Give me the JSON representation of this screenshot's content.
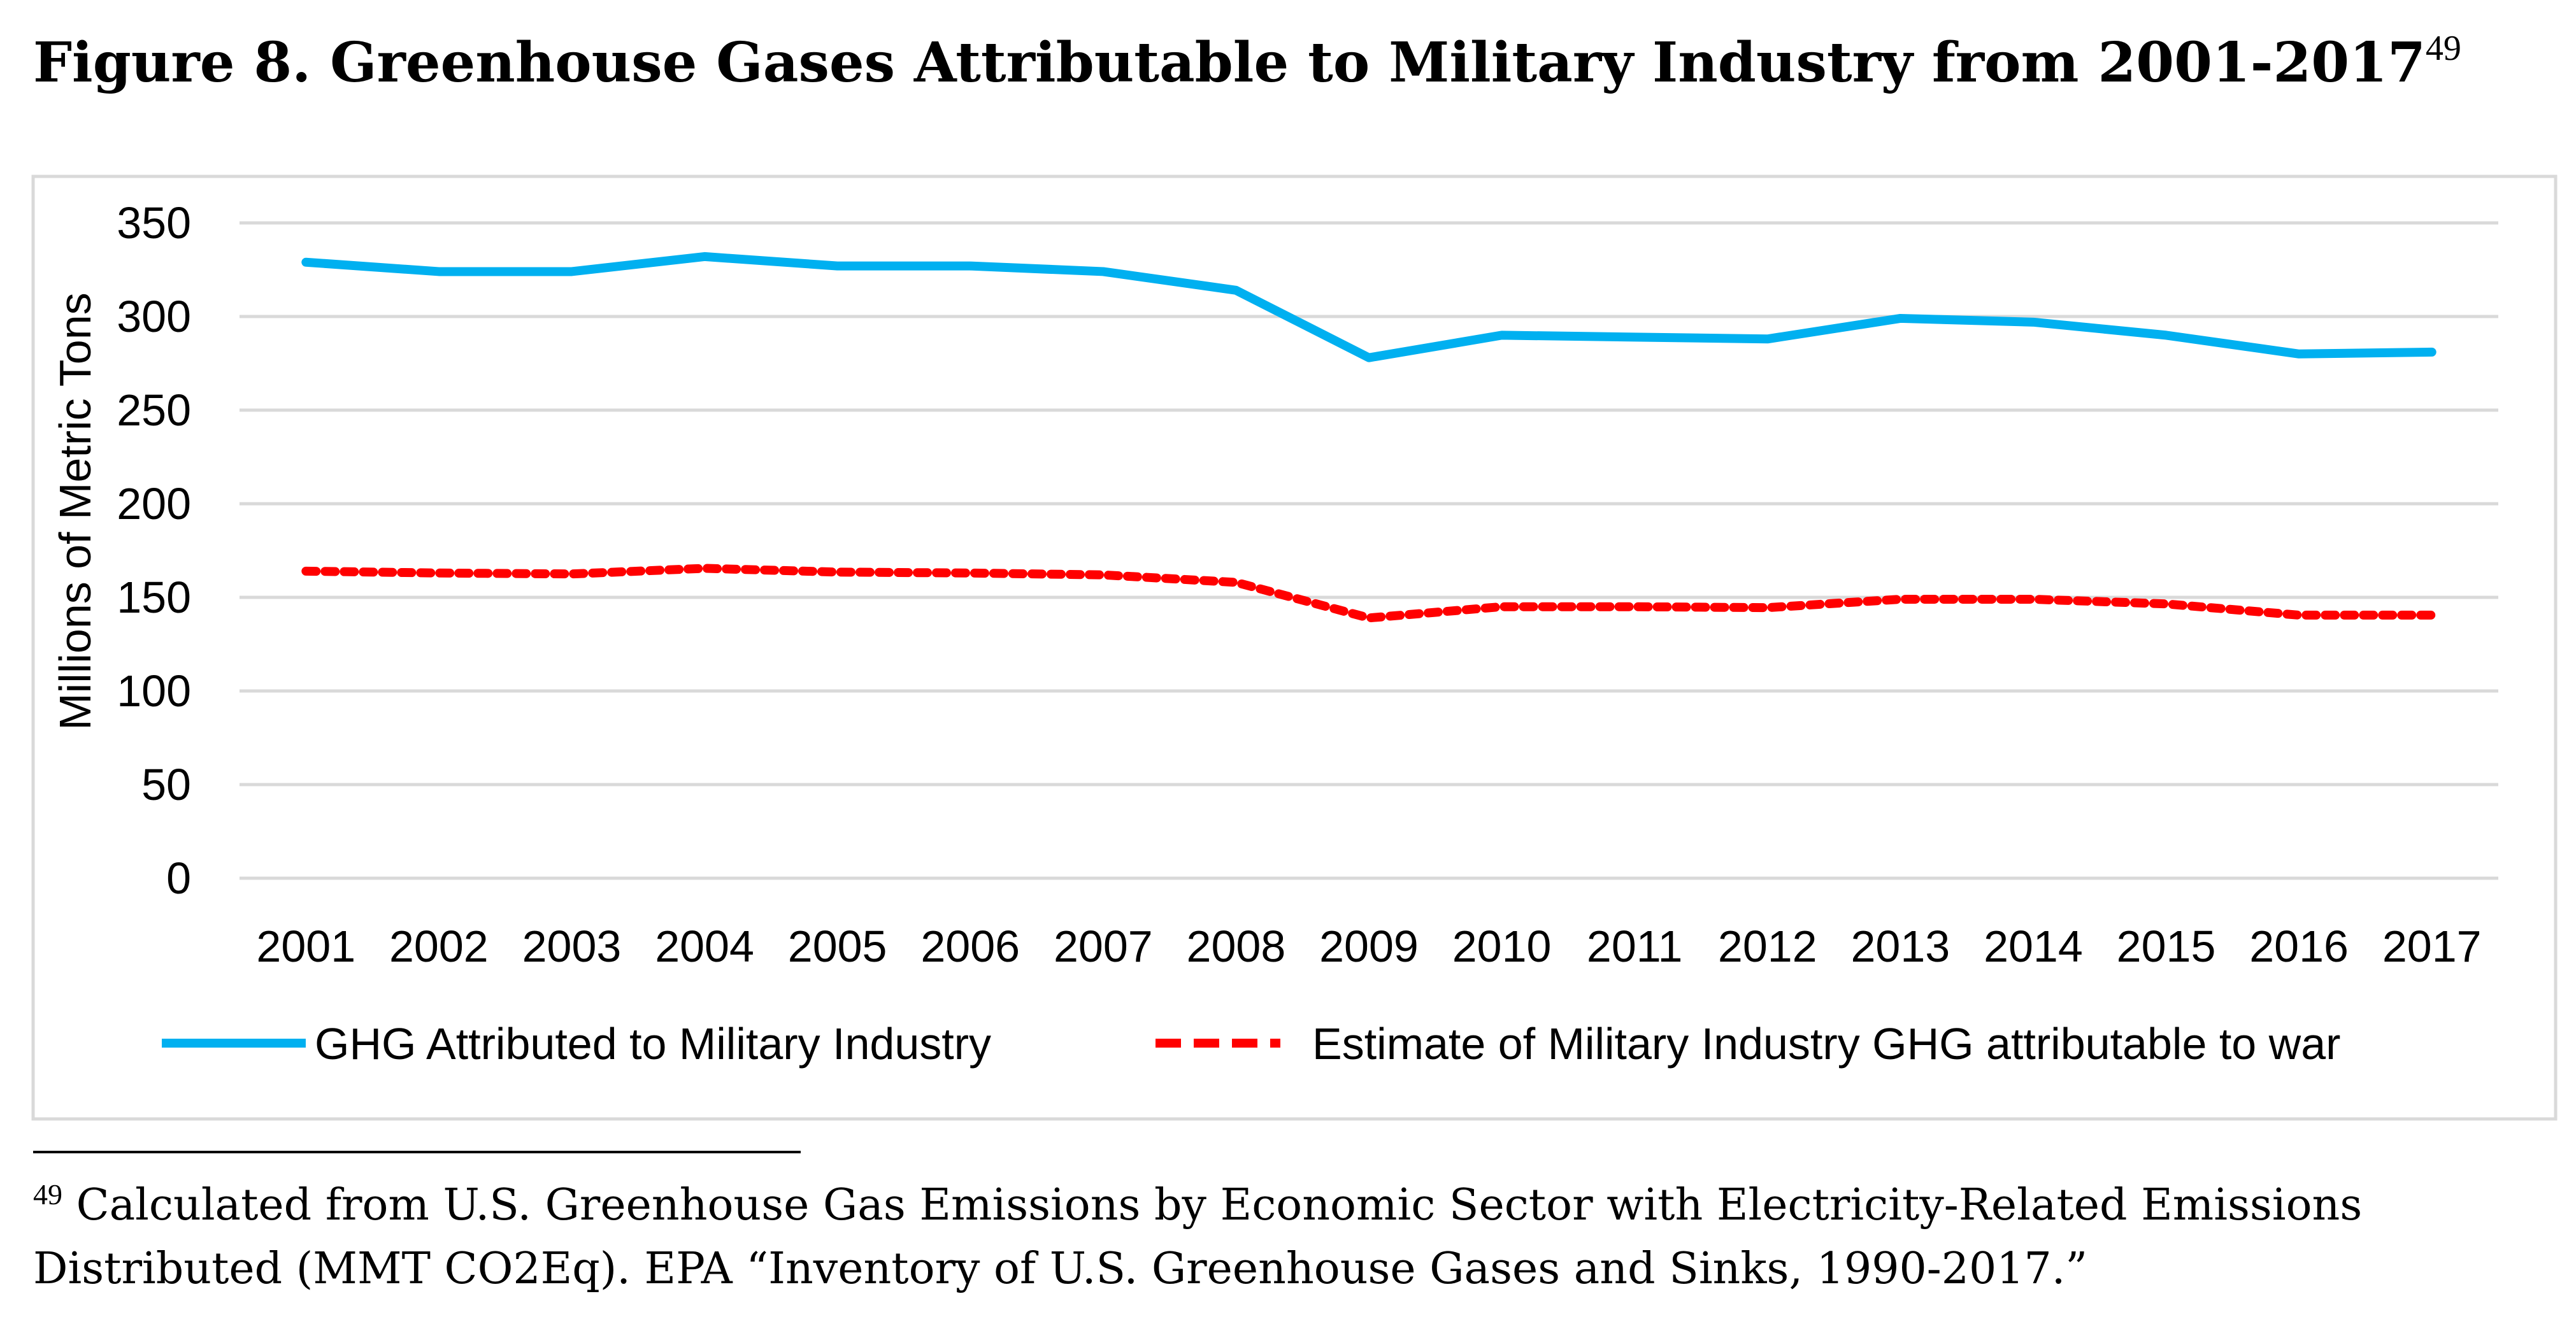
{
  "figure": {
    "title": "Figure 8. Greenhouse Gases Attributable to Military Industry from 2001-2017",
    "title_footnote_ref": "49"
  },
  "chart_data": {
    "type": "line",
    "title": "",
    "xlabel": "",
    "ylabel": "Millions of Metric Tons",
    "ylim": [
      0,
      350
    ],
    "yticks": [
      "0",
      "50",
      "100",
      "150",
      "200",
      "250",
      "300",
      "350"
    ],
    "grid": true,
    "legend_position": "bottom",
    "categories": [
      "2001",
      "2002",
      "2003",
      "2004",
      "2005",
      "2006",
      "2007",
      "2008",
      "2009",
      "2010",
      "2011",
      "2012",
      "2013",
      "2014",
      "2015",
      "2016",
      "2017"
    ],
    "series": [
      {
        "name": "GHG Attributed to Military Industry",
        "color": "#00B0F0",
        "style": "solid",
        "values": [
          329,
          324,
          324,
          332,
          327,
          327,
          324,
          314,
          278,
          290,
          289,
          288,
          299,
          297,
          290,
          280,
          281
        ]
      },
      {
        "name": "Estimate of Military Industry GHG attributable to war",
        "color": "#FF0000",
        "style": "dashed",
        "values": [
          164,
          163,
          162.5,
          165.5,
          163.5,
          163,
          162,
          158,
          139,
          145,
          145,
          144.5,
          149,
          149,
          146.5,
          140.5,
          140.5
        ]
      }
    ]
  },
  "footnote": {
    "number": "49",
    "line1": " Calculated from U.S. Greenhouse Gas Emissions by Economic Sector with Electricity-Related Emissions",
    "line2": "Distributed (MMT CO2Eq). EPA “Inventory of U.S. Greenhouse Gases and Sinks, 1990-2017.”"
  }
}
